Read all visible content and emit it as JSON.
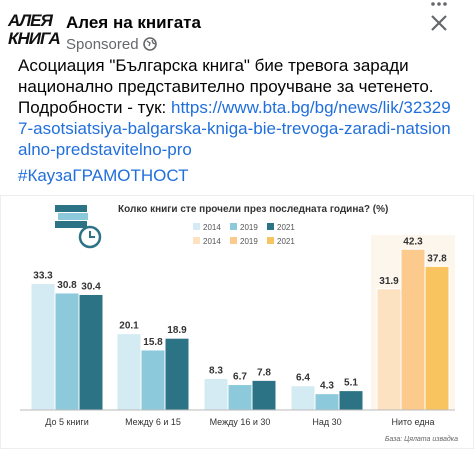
{
  "header": {
    "logo_top": "АЛЕЯ",
    "logo_bottom": "КНИГА",
    "name": "Алея на книгата",
    "sponsored": "Sponsored"
  },
  "post": {
    "body": "Асоциация \"Българска книга\" бие тревога заради национално представително проучване за четенето. Подробности - тук:",
    "link": "https://www.bta.bg/bg/news/lik/323297-asotsiatsiya-balgarska-kniga-bie-trevoga-zaradi-natsionalno-predstavitelno-pro",
    "hashtag": "#КаузаГРАМОТНОСТ"
  },
  "chart_data": {
    "type": "bar",
    "title": "Колко книги  сте прочели през последната година? (%)",
    "categories": [
      "До 5 книги",
      "Между 6 и 15",
      "Между 16 и 30",
      "Над 30",
      "Нито една"
    ],
    "series": [
      {
        "name": "2014",
        "colors": [
          "#d5ebf4",
          "#d5ebf4",
          "#d5ebf4",
          "#d5ebf4",
          "#fde2c2"
        ],
        "values": [
          33.3,
          20.1,
          8.3,
          6.4,
          31.9
        ]
      },
      {
        "name": "2019",
        "colors": [
          "#8ccadb",
          "#8ccadb",
          "#8ccadb",
          "#8ccadb",
          "#fbca8c"
        ],
        "values": [
          30.8,
          15.8,
          6.7,
          4.3,
          42.3
        ]
      },
      {
        "name": "2021",
        "colors": [
          "#2d7386",
          "#2d7386",
          "#2d7386",
          "#2d7386",
          "#f7c460"
        ],
        "values": [
          30.4,
          18.9,
          7.8,
          5.1,
          37.8
        ]
      }
    ],
    "source": "База: Цялата извадка"
  }
}
